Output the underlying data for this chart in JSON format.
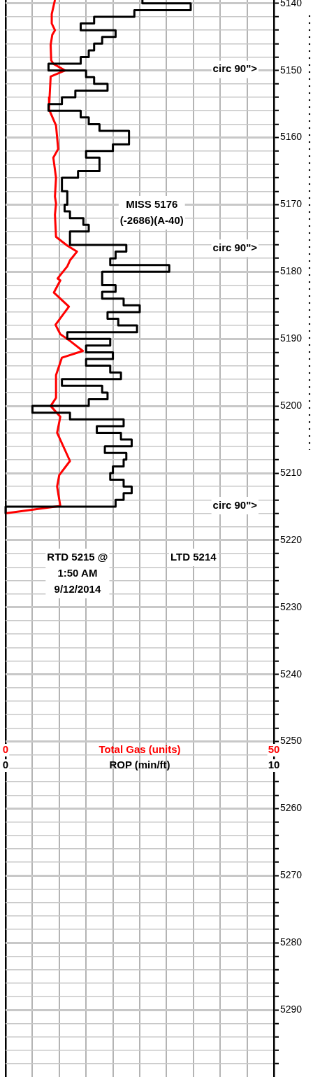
{
  "chart_data": {
    "type": "line",
    "orientation": "horizontal",
    "xlabel": "ROP (min/ft)",
    "x2label": "Total Gas (units)",
    "xlim": [
      0,
      10
    ],
    "xticks": [
      0,
      {
        "value": 1,
        "label": null
      },
      {
        "value": 2,
        "label": null
      },
      {
        "value": 3,
        "label": null
      },
      {
        "value": 4,
        "label": null
      },
      {
        "value": 5,
        "label": null
      },
      {
        "value": 6,
        "label": null
      },
      {
        "value": 7,
        "label": null
      },
      {
        "value": 8,
        "label": null
      },
      {
        "value": 9,
        "label": null
      },
      10
    ],
    "x2lim": [
      0,
      50
    ],
    "x2ticks": [
      0,
      50
    ],
    "ylim": [
      5300,
      5139.5
    ],
    "yticks": [
      5140,
      {
        "value": 5142,
        "label": null
      },
      {
        "value": 5144,
        "label": null
      },
      {
        "value": 5146,
        "label": null
      },
      {
        "value": 5148,
        "label": null
      },
      5150,
      {
        "value": 5152,
        "label": null
      },
      {
        "value": 5154,
        "label": null
      },
      {
        "value": 5156,
        "label": null
      },
      {
        "value": 5158,
        "label": null
      },
      5160,
      {
        "value": 5162,
        "label": null
      },
      {
        "value": 5164,
        "label": null
      },
      {
        "value": 5166,
        "label": null
      },
      {
        "value": 5168,
        "label": null
      },
      5170,
      {
        "value": 5172,
        "label": null
      },
      {
        "value": 5174,
        "label": null
      },
      {
        "value": 5176,
        "label": null
      },
      {
        "value": 5178,
        "label": null
      },
      5180,
      {
        "value": 5182,
        "label": null
      },
      {
        "value": 5184,
        "label": null
      },
      {
        "value": 5186,
        "label": null
      },
      {
        "value": 5188,
        "label": null
      },
      5190,
      {
        "value": 5192,
        "label": null
      },
      {
        "value": 5194,
        "label": null
      },
      {
        "value": 5196,
        "label": null
      },
      {
        "value": 5198,
        "label": null
      },
      5200,
      {
        "value": 5202,
        "label": null
      },
      {
        "value": 5204,
        "label": null
      },
      {
        "value": 5206,
        "label": null
      },
      {
        "value": 5208,
        "label": null
      },
      5210,
      {
        "value": 5212,
        "label": null
      },
      {
        "value": 5214,
        "label": null
      },
      {
        "value": 5216,
        "label": null
      },
      {
        "value": 5218,
        "label": null
      },
      5220,
      {
        "value": 5222,
        "label": null
      },
      {
        "value": 5224,
        "label": null
      },
      {
        "value": 5226,
        "label": null
      },
      {
        "value": 5228,
        "label": null
      },
      5230,
      {
        "value": 5232,
        "label": null
      },
      {
        "value": 5234,
        "label": null
      },
      {
        "value": 5236,
        "label": null
      },
      {
        "value": 5238,
        "label": null
      },
      5240,
      {
        "value": 5242,
        "label": null
      },
      {
        "value": 5244,
        "label": null
      },
      {
        "value": 5246,
        "label": null
      },
      {
        "value": 5248,
        "label": null
      },
      5250,
      {
        "value": 5252,
        "label": null
      },
      {
        "value": 5254,
        "label": null
      },
      {
        "value": 5256,
        "label": null
      },
      {
        "value": 5258,
        "label": null
      },
      5260,
      {
        "value": 5262,
        "label": null
      },
      {
        "value": 5264,
        "label": null
      },
      {
        "value": 5266,
        "label": null
      },
      {
        "value": 5268,
        "label": null
      },
      5270,
      {
        "value": 5272,
        "label": null
      },
      {
        "value": 5274,
        "label": null
      },
      {
        "value": 5276,
        "label": null
      },
      {
        "value": 5278,
        "label": null
      },
      5280,
      {
        "value": 5282,
        "label": null
      },
      {
        "value": 5284,
        "label": null
      },
      {
        "value": 5286,
        "label": null
      },
      {
        "value": 5288,
        "label": null
      },
      5290,
      {
        "value": 5292,
        "label": null
      },
      {
        "value": 5294,
        "label": null
      },
      {
        "value": 5296,
        "label": null
      },
      {
        "value": 5298,
        "label": null
      }
    ],
    "grid": true,
    "annotations": [
      "circ 90\">",
      "MISS 5176\n(-2686)(A-40)",
      "circ 90\">",
      "circ 90\">",
      "RTD 5215 @\n1:50 AM\n9/12/2014",
      "LTD 5214"
    ],
    "series": [
      {
        "type": "step",
        "color": "#000000",
        "x": [
          5139.5,
          5140,
          5141,
          5142,
          5143,
          5144,
          5145,
          5146,
          5147,
          5148,
          5149,
          5150,
          5151,
          5152,
          5153,
          5154,
          5155,
          5156,
          5157,
          5158,
          5159,
          5160,
          5161,
          5162,
          5163,
          5164,
          5165,
          5166,
          5167,
          5168,
          5169,
          5170,
          5171,
          5172,
          5173,
          5174,
          5175,
          5176,
          5177,
          5178,
          5179,
          5180,
          5181,
          5182,
          5183,
          5184,
          5185,
          5186,
          5187,
          5188,
          5189,
          5190,
          5191,
          5192,
          5193,
          5194,
          5195,
          5196,
          5197,
          5198,
          5199,
          5200,
          5201,
          5202,
          5203,
          5204,
          5205,
          5206,
          5207,
          5208,
          5209,
          5210,
          5211,
          5212,
          5213,
          5214,
          5215,
          5216
        ],
        "values": [
          5.1,
          6.9,
          4.8,
          3.3,
          2.8,
          4.1,
          3.6,
          3.3,
          3.1,
          2.8,
          1.6,
          3.0,
          3.3,
          3.8,
          2.6,
          2.1,
          1.6,
          2.8,
          3.1,
          3.5,
          4.6,
          4.6,
          4.0,
          3.0,
          3.5,
          3.5,
          2.7,
          2.1,
          2.1,
          2.3,
          2.3,
          2.2,
          2.4,
          2.9,
          3.1,
          2.4,
          2.4,
          4.5,
          4.1,
          3.9,
          6.1,
          3.6,
          3.6,
          4.1,
          3.6,
          4.4,
          5.0,
          3.8,
          4.2,
          4.9,
          2.3,
          3.9,
          3.0,
          4.0,
          3.0,
          3.9,
          4.3,
          2.1,
          3.6,
          3.8,
          3.1,
          1.0,
          2.4,
          4.4,
          3.4,
          4.3,
          4.7,
          3.7,
          4.5,
          4.4,
          4.0,
          3.9,
          4.4,
          4.7,
          4.4,
          4.1,
          0,
          0
        ]
      },
      {
        "type": "line",
        "color": "#ff0000",
        "axis": "x2",
        "x": [
          5139.5,
          5141.6,
          5143,
          5144,
          5144.7,
          5146.2,
          5148.5,
          5149,
          5150,
          5150.9,
          5154,
          5155.8,
          5158.2,
          5161.7,
          5163,
          5166,
          5168.8,
          5169.8,
          5171.5,
          5174.8,
          5176.1,
          5177,
          5178.3,
          5179.2,
          5181,
          5181.3,
          5183.1,
          5185.2,
          5187.9,
          5189.3,
          5190.3,
          5191.8,
          5192.8,
          5195.4,
          5198.8,
          5200,
          5201.6,
          5204,
          5208.2,
          5210.3,
          5212,
          5214.9,
          5216
        ],
        "values": [
          9.2,
          8.6,
          8.6,
          9.2,
          8.7,
          8.4,
          8.5,
          8.9,
          11.1,
          8.4,
          8.2,
          8.1,
          9.4,
          9.8,
          8.9,
          9.4,
          9.2,
          9.4,
          9.2,
          9.4,
          11.5,
          13.3,
          12.0,
          11.5,
          9.7,
          10.2,
          9.0,
          11.8,
          9.3,
          10.2,
          12.0,
          14.4,
          10.5,
          9.4,
          9.4,
          8.4,
          10.2,
          9.6,
          12.0,
          10.0,
          9.6,
          10.2,
          0
        ]
      }
    ]
  }
}
